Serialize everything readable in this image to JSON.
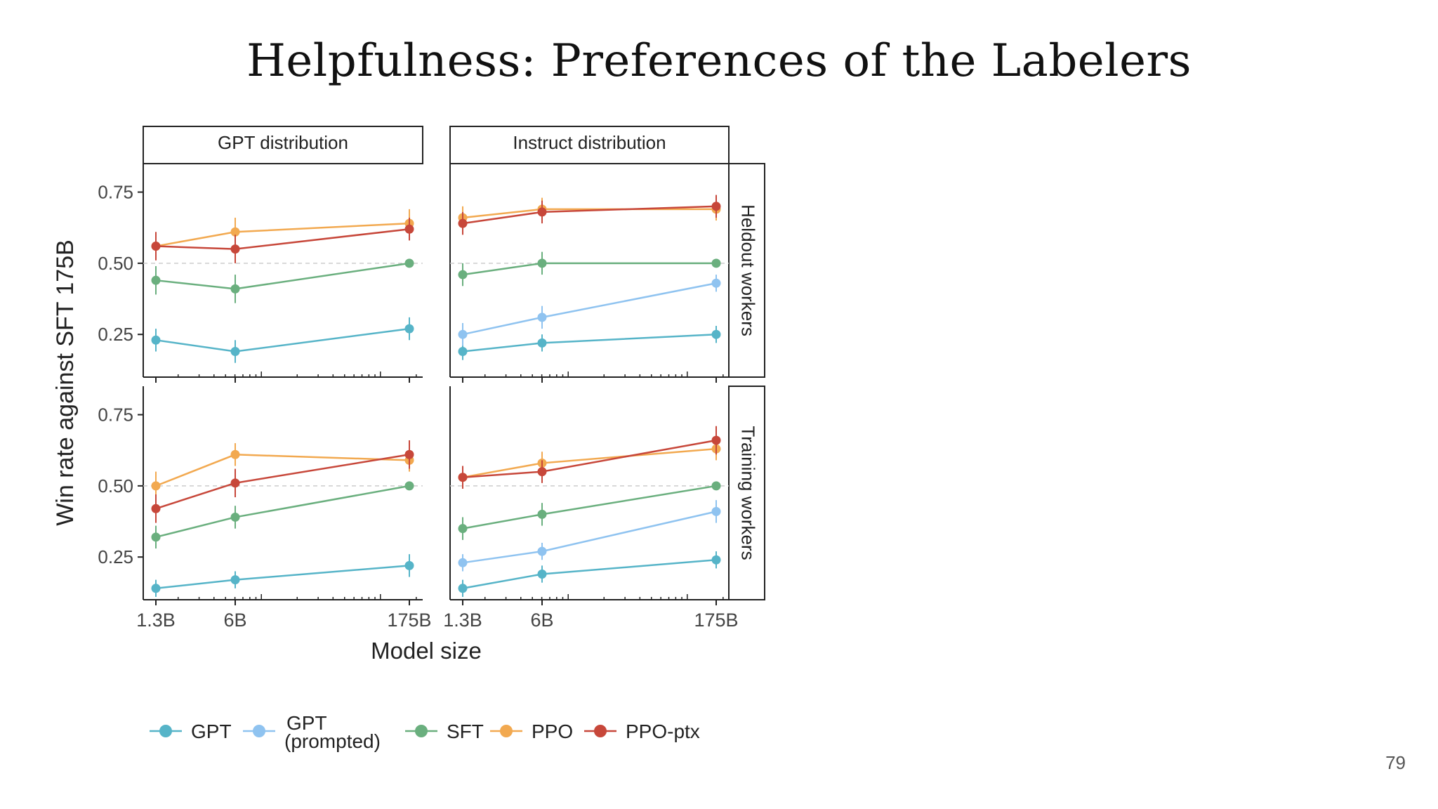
{
  "slide": {
    "title": "Helpfulness: Preferences of the Labelers",
    "page_number": "79"
  },
  "chart_data": {
    "type": "line",
    "ylabel": "Win rate against SFT 175B",
    "xlabel": "Model size",
    "x_scale": "log",
    "x_ticks": [
      "1.3B",
      "6B",
      "175B"
    ],
    "x": [
      1.3,
      6,
      175
    ],
    "y_ticks": [
      "0.25",
      "0.50",
      "0.75"
    ],
    "ylim": [
      0.1,
      0.85
    ],
    "reference_line": 0.5,
    "columns": [
      "GPT distribution",
      "Instruct distribution"
    ],
    "rows": [
      "Heldout workers",
      "Training workers"
    ],
    "series_styles": [
      {
        "name": "GPT",
        "color": "#56b4c8"
      },
      {
        "name": "GPT (prompted)",
        "color": "#8fc3f0"
      },
      {
        "name": "SFT",
        "color": "#6aaf7e"
      },
      {
        "name": "PPO",
        "color": "#f2a950"
      },
      {
        "name": "PPO-ptx",
        "color": "#c7473a"
      }
    ],
    "legend": {
      "position": "bottom",
      "labels": [
        "GPT",
        "GPT",
        "(prompted)",
        "SFT",
        "PPO",
        "PPO-ptx"
      ]
    },
    "panels": [
      {
        "column": "GPT distribution",
        "row": "Heldout workers",
        "series": [
          {
            "name": "GPT",
            "values": [
              0.23,
              0.19,
              0.27
            ],
            "err": [
              0.04,
              0.04,
              0.04
            ]
          },
          {
            "name": "SFT",
            "values": [
              0.44,
              0.41,
              0.5
            ],
            "err": [
              0.05,
              0.05,
              0.01
            ]
          },
          {
            "name": "PPO",
            "values": [
              0.56,
              0.61,
              0.64
            ],
            "err": [
              0.04,
              0.05,
              0.05
            ]
          },
          {
            "name": "PPO-ptx",
            "values": [
              0.56,
              0.55,
              0.62
            ],
            "err": [
              0.05,
              0.05,
              0.04
            ]
          }
        ]
      },
      {
        "column": "Instruct distribution",
        "row": "Heldout workers",
        "series": [
          {
            "name": "GPT",
            "values": [
              0.19,
              0.22,
              0.25
            ],
            "err": [
              0.03,
              0.03,
              0.03
            ]
          },
          {
            "name": "GPT (prompted)",
            "values": [
              0.25,
              0.31,
              0.43
            ],
            "err": [
              0.04,
              0.04,
              0.03
            ]
          },
          {
            "name": "SFT",
            "values": [
              0.46,
              0.5,
              0.5
            ],
            "err": [
              0.04,
              0.04,
              0.01
            ]
          },
          {
            "name": "PPO",
            "values": [
              0.66,
              0.69,
              0.69
            ],
            "err": [
              0.04,
              0.04,
              0.04
            ]
          },
          {
            "name": "PPO-ptx",
            "values": [
              0.64,
              0.68,
              0.7
            ],
            "err": [
              0.04,
              0.04,
              0.04
            ]
          }
        ]
      },
      {
        "column": "GPT distribution",
        "row": "Training workers",
        "series": [
          {
            "name": "GPT",
            "values": [
              0.14,
              0.17,
              0.22
            ],
            "err": [
              0.03,
              0.03,
              0.04
            ]
          },
          {
            "name": "SFT",
            "values": [
              0.32,
              0.39,
              0.5
            ],
            "err": [
              0.04,
              0.04,
              0.01
            ]
          },
          {
            "name": "PPO",
            "values": [
              0.5,
              0.61,
              0.59
            ],
            "err": [
              0.05,
              0.04,
              0.04
            ]
          },
          {
            "name": "PPO-ptx",
            "values": [
              0.42,
              0.51,
              0.61
            ],
            "err": [
              0.05,
              0.05,
              0.05
            ]
          }
        ]
      },
      {
        "column": "Instruct distribution",
        "row": "Training workers",
        "series": [
          {
            "name": "GPT",
            "values": [
              0.14,
              0.19,
              0.24
            ],
            "err": [
              0.03,
              0.03,
              0.03
            ]
          },
          {
            "name": "GPT (prompted)",
            "values": [
              0.23,
              0.27,
              0.41
            ],
            "err": [
              0.03,
              0.03,
              0.04
            ]
          },
          {
            "name": "SFT",
            "values": [
              0.35,
              0.4,
              0.5
            ],
            "err": [
              0.04,
              0.04,
              0.01
            ]
          },
          {
            "name": "PPO",
            "values": [
              0.53,
              0.58,
              0.63
            ],
            "err": [
              0.04,
              0.04,
              0.04
            ]
          },
          {
            "name": "PPO-ptx",
            "values": [
              0.53,
              0.55,
              0.66
            ],
            "err": [
              0.04,
              0.04,
              0.05
            ]
          }
        ]
      }
    ]
  }
}
